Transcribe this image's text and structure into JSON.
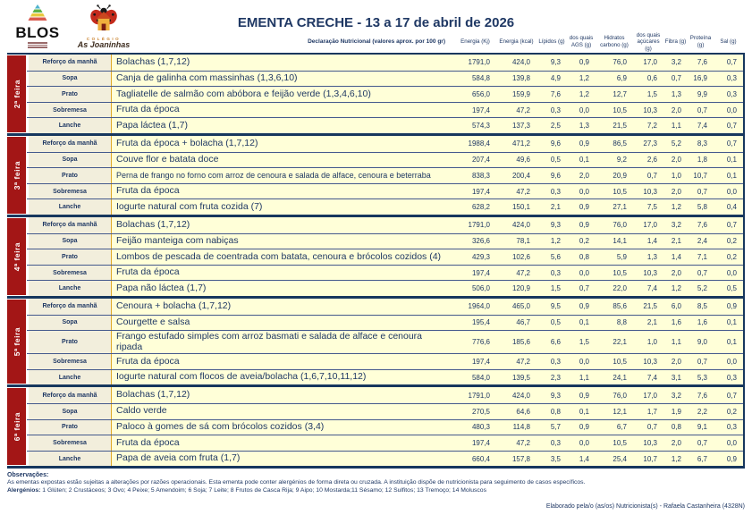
{
  "header": {
    "title": "EMENTA CRECHE - 13 a 17 de abril de 2026",
    "logo_blos_text": "BLOS",
    "logo_school_top": "COLÉGIO",
    "logo_school_name": "As Joaninhas"
  },
  "nutrition_header": {
    "label": "Declaração Nutricional (valores aprox. por 100 gr)",
    "columns": [
      "Energia (Kj)",
      "Energia (kcal)",
      "Lípidos (g)",
      "dos quais AGS (g)",
      "Hidratos carbono (g)",
      "dos quais açúcares (g)",
      "Fibra (g)",
      "Proteína (g)",
      "Sal (g)"
    ]
  },
  "colors": {
    "navy": "#1F3864",
    "day_red": "#A31616",
    "meal_cream": "#F2EEDC",
    "cell_yellow": "#FFFFD8",
    "gold_line": "#DFA927"
  },
  "days": [
    {
      "day": "2ª feira",
      "rows": [
        {
          "meal": "Reforço da manhã",
          "dish": "Bolachas (1,7,12)",
          "values": [
            "1791,0",
            "424,0",
            "9,3",
            "0,9",
            "76,0",
            "17,0",
            "3,2",
            "7,6",
            "0,7"
          ]
        },
        {
          "meal": "Sopa",
          "dish": "Canja de galinha com massinhas (1,3,6,10)",
          "values": [
            "584,8",
            "139,8",
            "4,9",
            "1,2",
            "6,9",
            "0,6",
            "0,7",
            "16,9",
            "0,3"
          ]
        },
        {
          "meal": "Prato",
          "dish": "Tagliatelle de salmão com abóbora e feijão verde (1,3,4,6,10)",
          "values": [
            "656,0",
            "159,9",
            "7,6",
            "1,2",
            "12,7",
            "1,5",
            "1,3",
            "9,9",
            "0,3"
          ]
        },
        {
          "meal": "Sobremesa",
          "dish": "Fruta da época",
          "values": [
            "197,4",
            "47,2",
            "0,3",
            "0,0",
            "10,5",
            "10,3",
            "2,0",
            "0,7",
            "0,0"
          ]
        },
        {
          "meal": "Lanche",
          "dish": "Papa láctea (1,7)",
          "values": [
            "574,3",
            "137,3",
            "2,5",
            "1,3",
            "21,5",
            "7,2",
            "1,1",
            "7,4",
            "0,7"
          ]
        }
      ]
    },
    {
      "day": "3ª feira",
      "rows": [
        {
          "meal": "Reforço da manhã",
          "dish": "Fruta da época + bolacha (1,7,12)",
          "values": [
            "1988,4",
            "471,2",
            "9,6",
            "0,9",
            "86,5",
            "27,3",
            "5,2",
            "8,3",
            "0,7"
          ]
        },
        {
          "meal": "Sopa",
          "dish": "Couve flor e batata doce",
          "values": [
            "207,4",
            "49,6",
            "0,5",
            "0,1",
            "9,2",
            "2,6",
            "2,0",
            "1,8",
            "0,1"
          ]
        },
        {
          "meal": "Prato",
          "dish": "Perna de frango no forno com arroz de cenoura e salada de alface, cenoura e beterraba",
          "values": [
            "838,3",
            "200,4",
            "9,6",
            "2,0",
            "20,9",
            "0,7",
            "1,0",
            "10,7",
            "0,1"
          ]
        },
        {
          "meal": "Sobremesa",
          "dish": "Fruta da época",
          "values": [
            "197,4",
            "47,2",
            "0,3",
            "0,0",
            "10,5",
            "10,3",
            "2,0",
            "0,7",
            "0,0"
          ]
        },
        {
          "meal": "Lanche",
          "dish": "Iogurte natural com fruta cozida (7)",
          "values": [
            "628,2",
            "150,1",
            "2,1",
            "0,9",
            "27,1",
            "7,5",
            "1,2",
            "5,8",
            "0,4"
          ]
        }
      ]
    },
    {
      "day": "4ª feira",
      "rows": [
        {
          "meal": "Reforço da manhã",
          "dish": "Bolachas (1,7,12)",
          "values": [
            "1791,0",
            "424,0",
            "9,3",
            "0,9",
            "76,0",
            "17,0",
            "3,2",
            "7,6",
            "0,7"
          ]
        },
        {
          "meal": "Sopa",
          "dish": "Feijão manteiga com nabiças",
          "values": [
            "326,6",
            "78,1",
            "1,2",
            "0,2",
            "14,1",
            "1,4",
            "2,1",
            "2,4",
            "0,2"
          ]
        },
        {
          "meal": "Prato",
          "dish": "Lombos de pescada de coentrada com batata, cenoura e brócolos cozidos (4)",
          "values": [
            "429,3",
            "102,6",
            "5,6",
            "0,8",
            "5,9",
            "1,3",
            "1,4",
            "7,1",
            "0,2"
          ]
        },
        {
          "meal": "Sobremesa",
          "dish": "Fruta da época",
          "values": [
            "197,4",
            "47,2",
            "0,3",
            "0,0",
            "10,5",
            "10,3",
            "2,0",
            "0,7",
            "0,0"
          ]
        },
        {
          "meal": "Lanche",
          "dish": "Papa não láctea (1,7)",
          "values": [
            "506,0",
            "120,9",
            "1,5",
            "0,7",
            "22,0",
            "7,4",
            "1,2",
            "5,2",
            "0,5"
          ]
        }
      ]
    },
    {
      "day": "5ª feira",
      "rows": [
        {
          "meal": "Reforço da manhã",
          "dish": "Cenoura + bolacha (1,7,12)",
          "values": [
            "1964,0",
            "465,0",
            "9,5",
            "0,9",
            "85,6",
            "21,5",
            "6,0",
            "8,5",
            "0,9"
          ]
        },
        {
          "meal": "Sopa",
          "dish": "Courgette e salsa",
          "values": [
            "195,4",
            "46,7",
            "0,5",
            "0,1",
            "8,8",
            "2,1",
            "1,6",
            "1,6",
            "0,1"
          ]
        },
        {
          "meal": "Prato",
          "dish": "Frango estufado simples com arroz basmati e salada de alface e cenoura ripada",
          "values": [
            "776,6",
            "185,6",
            "6,6",
            "1,5",
            "22,1",
            "1,0",
            "1,1",
            "9,0",
            "0,1"
          ]
        },
        {
          "meal": "Sobremesa",
          "dish": "Fruta da época",
          "values": [
            "197,4",
            "47,2",
            "0,3",
            "0,0",
            "10,5",
            "10,3",
            "2,0",
            "0,7",
            "0,0"
          ]
        },
        {
          "meal": "Lanche",
          "dish": "Iogurte natural com flocos de aveia/bolacha (1,6,7,10,11,12)",
          "values": [
            "584,0",
            "139,5",
            "2,3",
            "1,1",
            "24,1",
            "7,4",
            "3,1",
            "5,3",
            "0,3"
          ]
        }
      ]
    },
    {
      "day": "6ª feira",
      "rows": [
        {
          "meal": "Reforço da manhã",
          "dish": "Bolachas (1,7,12)",
          "values": [
            "1791,0",
            "424,0",
            "9,3",
            "0,9",
            "76,0",
            "17,0",
            "3,2",
            "7,6",
            "0,7"
          ]
        },
        {
          "meal": "Sopa",
          "dish": "Caldo verde",
          "values": [
            "270,5",
            "64,6",
            "0,8",
            "0,1",
            "12,1",
            "1,7",
            "1,9",
            "2,2",
            "0,2"
          ]
        },
        {
          "meal": "Prato",
          "dish": "Paloco à gomes de sá com brócolos cozidos (3,4)",
          "values": [
            "480,3",
            "114,8",
            "5,7",
            "0,9",
            "6,7",
            "0,7",
            "0,8",
            "9,1",
            "0,3"
          ]
        },
        {
          "meal": "Sobremesa",
          "dish": "Fruta da época",
          "values": [
            "197,4",
            "47,2",
            "0,3",
            "0,0",
            "10,5",
            "10,3",
            "2,0",
            "0,7",
            "0,0"
          ]
        },
        {
          "meal": "Lanche",
          "dish": "Papa de aveia com fruta (1,7)",
          "values": [
            "660,4",
            "157,8",
            "3,5",
            "1,4",
            "25,4",
            "10,7",
            "1,2",
            "6,7",
            "0,9"
          ]
        }
      ]
    }
  ],
  "footer": {
    "observations_title": "Observações:",
    "observations_text": "As ementas expostas estão sujeitas a alterações por razões operacionais. Esta ementa pode conter alergénios de forma direta ou cruzada. A instituição dispõe de nutricionista para seguimento de casos específicos.",
    "allergens_label": "Alergénios:",
    "allergens_list": "1 Glúten; 2 Crustáceos; 3 Ovo; 4 Peixe; 5 Amendoim; 6 Soja; 7 Leite; 8 Frutos de Casca Rija; 9 Aipo; 10 Mostarda;11 Sésamo; 12 Sulfitos; 13 Tremoço; 14 Moluscos",
    "elaborated_by": "Elaborado pela/o (as/os) Nutricionista(s) - Rafaela Castanheira (4328N)"
  }
}
